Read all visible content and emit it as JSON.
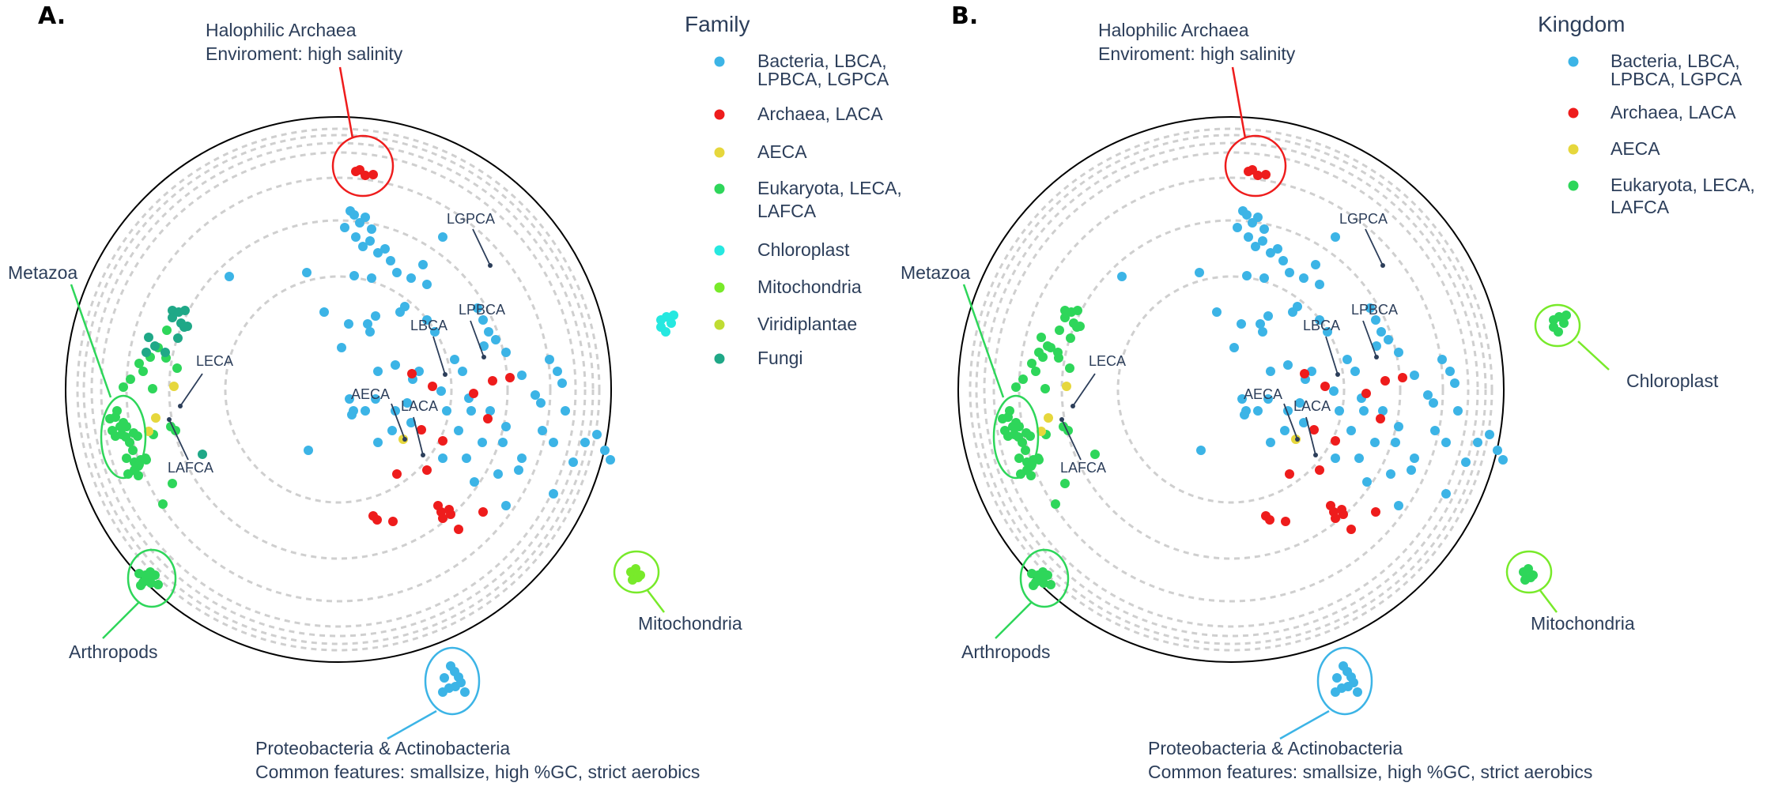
{
  "chart_data": [
    {
      "type": "scatter",
      "panel": "A.",
      "legend_title": "Family",
      "legend": [
        {
          "label": [
            "Bacteria, LBCA,",
            "LPBCA, LGPCA"
          ],
          "color": "#3cb4e6"
        },
        {
          "label": [
            "Archaea, LACA"
          ],
          "color": "#ee1c1c"
        },
        {
          "label": [
            "AECA"
          ],
          "color": "#e6d73c"
        },
        {
          "label": [
            "Eukaryota, LECA,",
            "LAFCA"
          ],
          "color": "#2ed65a"
        },
        {
          "label": [
            "Chloroplast"
          ],
          "color": "#26e8e0"
        },
        {
          "label": [
            "Mitochondria"
          ],
          "color": "#78ea2a"
        },
        {
          "label": [
            "Viridiplantae"
          ],
          "color": "#bfdc33"
        },
        {
          "label": [
            "Fungi"
          ],
          "color": "#1fa887"
        }
      ],
      "group_labels": {
        "halophilic": [
          "Halophilic Archaea",
          "Enviroment: high salinity"
        ],
        "metazoa": "Metazoa",
        "arthropods": "Arthropods",
        "mitochondria": "Mitochondria",
        "proteo": [
          "Proteobacteria & Actinobacteria",
          "Common features: smallsize, high %GC, strict aerobics"
        ]
      },
      "ancestors": [
        "LGPCA",
        "LPBCA",
        "LBCA",
        "AECA",
        "LACA",
        "LECA",
        "LAFCA"
      ]
    },
    {
      "type": "scatter",
      "panel": "B.",
      "legend_title": "Kingdom",
      "legend": [
        {
          "label": [
            "Bacteria, LBCA,",
            "LPBCA, LGPCA"
          ],
          "color": "#3cb4e6"
        },
        {
          "label": [
            "Archaea, LACA"
          ],
          "color": "#ee1c1c"
        },
        {
          "label": [
            "AECA"
          ],
          "color": "#e6d73c"
        },
        {
          "label": [
            "Eukaryota, LECA,",
            "LAFCA"
          ],
          "color": "#2ed65a"
        }
      ],
      "group_labels": {
        "halophilic": [
          "Halophilic Archaea",
          "Enviroment: high salinity"
        ],
        "metazoa": "Metazoa",
        "chloroplast": "Chloroplast",
        "arthropods": "Arthropods",
        "mitochondria": "Mitochondria",
        "proteo": [
          "Proteobacteria & Actinobacteria",
          "Common features: smallsize, high %GC, strict aerobics"
        ]
      },
      "ancestors": [
        "LGPCA",
        "LPBCA",
        "LBCA",
        "AECA",
        "LACA",
        "LECA",
        "LAFCA"
      ]
    }
  ]
}
